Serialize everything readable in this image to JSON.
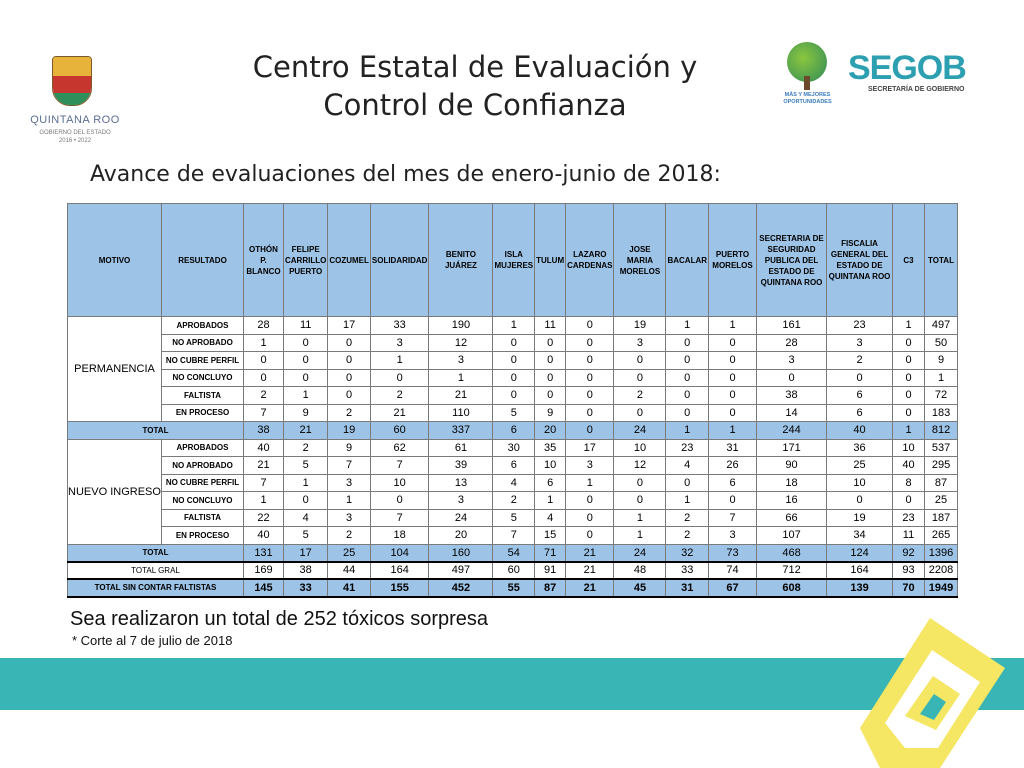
{
  "logos": {
    "left_name": "QUINTANA ROO",
    "left_sub": "GOBIERNO DEL ESTADO",
    "left_years": "2016 • 2022",
    "mas_text": "MÁS Y MEJORES OPORTUNIDADES",
    "segob": "SEGOB",
    "segob_sub": "SECRETARÍA DE GOBIERNO"
  },
  "title_line1": "Centro Estatal de Evaluación y",
  "title_line2": "Control de Confianza",
  "subtitle": "Avance de evaluaciones del mes de enero-junio de 2018:",
  "table": {
    "headers": [
      "MOTIVO",
      "RESULTADO",
      "OTHÓN P. BLANCO",
      "FELIPE CARRILLO PUERTO",
      "COZUMEL",
      "SOLIDARIDAD",
      "BENITO JUÁREZ",
      "ISLA MUJERES",
      "TULUM",
      "LAZARO CARDENAS",
      "JOSE MARIA MORELOS",
      "BACALAR",
      "PUERTO MORELOS",
      "SECRETARIA DE SEGURIDAD PUBLICA DEL ESTADO DE QUINTANA ROO",
      "FISCALIA GENERAL DEL ESTADO DE QUINTANA ROO",
      "C3",
      "TOTAL"
    ],
    "groups": [
      {
        "motivo": "PERMANENCIA",
        "rows": [
          {
            "resultado": "APROBADOS",
            "values": [
              "28",
              "11",
              "17",
              "33",
              "190",
              "1",
              "11",
              "0",
              "19",
              "1",
              "1",
              "161",
              "23",
              "1",
              "497"
            ]
          },
          {
            "resultado": "NO APROBADO",
            "values": [
              "1",
              "0",
              "0",
              "3",
              "12",
              "0",
              "0",
              "0",
              "3",
              "0",
              "0",
              "28",
              "3",
              "0",
              "50"
            ]
          },
          {
            "resultado": "NO CUBRE PERFIL",
            "values": [
              "0",
              "0",
              "0",
              "1",
              "3",
              "0",
              "0",
              "0",
              "0",
              "0",
              "0",
              "3",
              "2",
              "0",
              "9"
            ]
          },
          {
            "resultado": "NO CONCLUYO",
            "values": [
              "0",
              "0",
              "0",
              "0",
              "1",
              "0",
              "0",
              "0",
              "0",
              "0",
              "0",
              "0",
              "0",
              "0",
              "1"
            ]
          },
          {
            "resultado": "FALTISTA",
            "values": [
              "2",
              "1",
              "0",
              "2",
              "21",
              "0",
              "0",
              "0",
              "2",
              "0",
              "0",
              "38",
              "6",
              "0",
              "72"
            ]
          },
          {
            "resultado": "EN PROCESO",
            "values": [
              "7",
              "9",
              "2",
              "21",
              "110",
              "5",
              "9",
              "0",
              "0",
              "0",
              "0",
              "14",
              "6",
              "0",
              "183"
            ]
          }
        ],
        "total_label": "TOTAL",
        "total": [
          "38",
          "21",
          "19",
          "60",
          "337",
          "6",
          "20",
          "0",
          "24",
          "1",
          "1",
          "244",
          "40",
          "1",
          "812"
        ]
      },
      {
        "motivo": "NUEVO INGRESO",
        "rows": [
          {
            "resultado": "APROBADOS",
            "values": [
              "40",
              "2",
              "9",
              "62",
              "61",
              "30",
              "35",
              "17",
              "10",
              "23",
              "31",
              "171",
              "36",
              "10",
              "537"
            ]
          },
          {
            "resultado": "NO APROBADO",
            "values": [
              "21",
              "5",
              "7",
              "7",
              "39",
              "6",
              "10",
              "3",
              "12",
              "4",
              "26",
              "90",
              "25",
              "40",
              "295"
            ]
          },
          {
            "resultado": "NO CUBRE PERFIL",
            "values": [
              "7",
              "1",
              "3",
              "10",
              "13",
              "4",
              "6",
              "1",
              "0",
              "0",
              "6",
              "18",
              "10",
              "8",
              "87"
            ]
          },
          {
            "resultado": "NO CONCLUYO",
            "values": [
              "1",
              "0",
              "1",
              "0",
              "3",
              "2",
              "1",
              "0",
              "0",
              "1",
              "0",
              "16",
              "0",
              "0",
              "25"
            ]
          },
          {
            "resultado": "FALTISTA",
            "values": [
              "22",
              "4",
              "3",
              "7",
              "24",
              "5",
              "4",
              "0",
              "1",
              "2",
              "7",
              "66",
              "19",
              "23",
              "187"
            ]
          },
          {
            "resultado": "EN PROCESO",
            "values": [
              "40",
              "5",
              "2",
              "18",
              "20",
              "7",
              "15",
              "0",
              "1",
              "2",
              "3",
              "107",
              "34",
              "11",
              "265"
            ]
          }
        ],
        "total_label": "TOTAL",
        "total": [
          "131",
          "17",
          "25",
          "104",
          "160",
          "54",
          "71",
          "21",
          "24",
          "32",
          "73",
          "468",
          "124",
          "92",
          "1396"
        ]
      }
    ],
    "total_gral_label": "TOTAL GRAL",
    "total_gral": [
      "169",
      "38",
      "44",
      "164",
      "497",
      "60",
      "91",
      "21",
      "48",
      "33",
      "74",
      "712",
      "164",
      "93",
      "2208"
    ],
    "sin_faltistas_label": "TOTAL SIN CONTAR FALTISTAS",
    "sin_faltistas": [
      "145",
      "33",
      "41",
      "155",
      "452",
      "55",
      "87",
      "21",
      "45",
      "31",
      "67",
      "608",
      "139",
      "70",
      "1949"
    ]
  },
  "note": "Sea  realizaron un total de 252 tóxicos sorpresa",
  "corte": "* Corte al 7 de julio de 2018",
  "colors": {
    "header_bg": "#9dc3e6",
    "band": "#3ab5b5",
    "deco_yellow": "#f5e663",
    "segob": "#2c9fb0"
  }
}
